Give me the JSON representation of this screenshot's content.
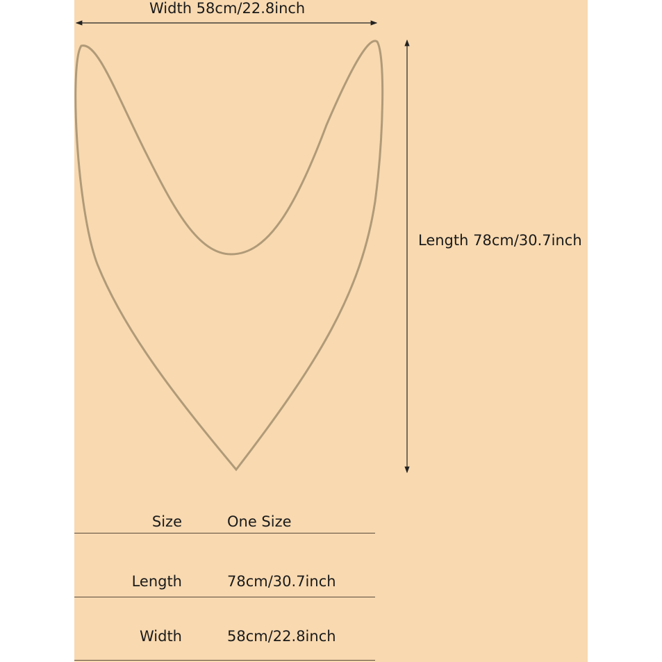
{
  "dimensions": {
    "width_label": "Width 58cm/22.8inch",
    "length_label": "Length 78cm/30.7inch"
  },
  "size_table": {
    "rows": [
      {
        "label": "Size",
        "value": "One Size"
      },
      {
        "label": "Length",
        "value": "78cm/30.7inch"
      },
      {
        "label": "Width",
        "value": "58cm/22.8inch"
      }
    ]
  },
  "colors": {
    "background": "#f8d9b0",
    "outline": "#b09a78",
    "text": "#1a1a1a"
  }
}
